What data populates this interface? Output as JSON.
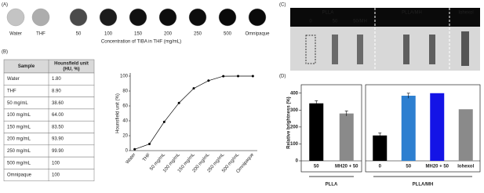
{
  "panel_labels": [
    "(A)",
    "(B)",
    "(C)",
    "(D)"
  ],
  "panel_a": {
    "samples": [
      {
        "label": "Water",
        "color": "#c4c4c4"
      },
      {
        "label": "THF",
        "color": "#adadad"
      },
      {
        "label": "50",
        "color": "#4a4a4a"
      },
      {
        "label": "100",
        "color": "#1c1c1c"
      },
      {
        "label": "150",
        "color": "#111111"
      },
      {
        "label": "200",
        "color": "#0d0d0d"
      },
      {
        "label": "250",
        "color": "#0d0d0d"
      },
      {
        "label": "500",
        "color": "#0a0a0a"
      },
      {
        "label": "Omnipaque",
        "color": "#0a0a0a"
      }
    ],
    "caption": "Concentration of TIBA in THF (mg/mL)"
  },
  "table": {
    "header": {
      "sample": "Sample",
      "unit_lines": [
        "Hounsfield unit",
        "(HU, %)"
      ]
    },
    "rows": [
      [
        "Water",
        "1.80"
      ],
      [
        "THF",
        "8.90"
      ],
      [
        "50 mg/mL",
        "38.60"
      ],
      [
        "100 mg/mL",
        "64.00"
      ],
      [
        "150 mg/mL",
        "83.50"
      ],
      [
        "200 mg/mL",
        "93.90"
      ],
      [
        "250 mg/mL",
        "99.90"
      ],
      [
        "500 mg/mL",
        "100"
      ],
      [
        "Omnipaque",
        "100"
      ]
    ]
  },
  "panel_c": {
    "groups": [
      {
        "name": "PLLA",
        "lanes": [
          "0",
          "50",
          "50/MH"
        ]
      },
      {
        "name": "PLLA/MH",
        "lanes": []
      },
      {
        "name": "Iohexol",
        "lanes": []
      }
    ]
  },
  "chart_data": [
    {
      "type": "line",
      "y_label": "Hounsfield unit (%)",
      "categories": [
        "Water",
        "THF",
        "50 mg/mL",
        "100 mg/mL",
        "150 mg/mL",
        "200 mg/mL",
        "250 mg/mL",
        "500 mg/mL",
        "Omnipaque"
      ],
      "values": [
        1.8,
        8.9,
        38.6,
        64.0,
        83.5,
        93.9,
        99.9,
        100,
        100
      ],
      "color": "#000000",
      "ylim": [
        0,
        100
      ],
      "yticks": [
        0,
        20,
        40,
        60,
        80,
        100
      ]
    },
    {
      "type": "grouped_bar",
      "y_label": "Relative brightness (%)",
      "ylim": [
        0,
        450
      ],
      "yticks": [
        0,
        100,
        200,
        300,
        400
      ],
      "groups": [
        {
          "name": "PLLA",
          "categories": [
            "50",
            "MH20 + 50"
          ],
          "values": [
            340,
            280
          ],
          "errors": [
            15,
            15
          ],
          "colors": [
            "#000000",
            "#8a8a8a"
          ]
        },
        {
          "name": "PLLA/MH",
          "categories": [
            "0",
            "50",
            "MH20 + 50",
            "Iohexol"
          ],
          "values": [
            150,
            385,
            400,
            305
          ],
          "errors": [
            15,
            15,
            null,
            null
          ],
          "colors": [
            "#000000",
            "#2d7fd0",
            "#1414e6",
            "#8a8a8a"
          ]
        }
      ]
    }
  ]
}
